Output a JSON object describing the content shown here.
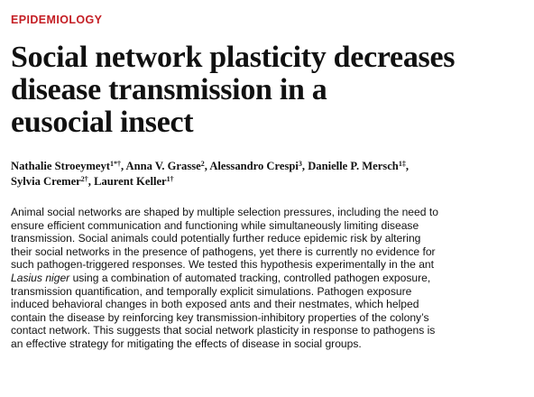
{
  "section_label": "EPIDEMIOLOGY",
  "title_lines": [
    "Social network plasticity decreases",
    "disease transmission in a",
    "eusocial insect"
  ],
  "authors": [
    {
      "name": "Nathalie Stroeymeyt",
      "marks": "1*†",
      "sep": ", "
    },
    {
      "name": "Anna V. Grasse",
      "marks": "2",
      "sep": ", "
    },
    {
      "name": "Alessandro Crespi",
      "marks": "3",
      "sep": ", "
    },
    {
      "name": "Danielle P. Mersch",
      "marks": "1‡",
      "sep": ","
    },
    {
      "name": "Sylvia Cremer",
      "marks": "2†",
      "sep": ", "
    },
    {
      "name": "Laurent Keller",
      "marks": "1†",
      "sep": ""
    }
  ],
  "abstract_lines": [
    {
      "pre": "Animal social networks are shaped by multiple selection pressures, including the need to",
      "italic": "",
      "post": ""
    },
    {
      "pre": "ensure efficient communication and functioning while simultaneously limiting disease",
      "italic": "",
      "post": ""
    },
    {
      "pre": "transmission. Social animals could potentially further reduce epidemic risk by altering",
      "italic": "",
      "post": ""
    },
    {
      "pre": "their social networks in the presence of pathogens, yet there is currently no evidence for",
      "italic": "",
      "post": ""
    },
    {
      "pre": "such pathogen-triggered responses. We tested this hypothesis experimentally in the ant",
      "italic": "",
      "post": ""
    },
    {
      "pre": "",
      "italic": "Lasius niger",
      "post": " using a combination of automated tracking, controlled pathogen exposure,"
    },
    {
      "pre": "transmission quantification, and temporally explicit simulations. Pathogen exposure",
      "italic": "",
      "post": ""
    },
    {
      "pre": "induced behavioral changes in both exposed ants and their nestmates, which helped",
      "italic": "",
      "post": ""
    },
    {
      "pre": "contain the disease by reinforcing key transmission-inhibitory properties of the colony’s",
      "italic": "",
      "post": ""
    },
    {
      "pre": "contact network. This suggests that social network plasticity in response to pathogens is",
      "italic": "",
      "post": ""
    },
    {
      "pre": "an effective strategy for mitigating the effects of disease in social groups.",
      "italic": "",
      "post": ""
    }
  ],
  "colors": {
    "section_label": "#c41e24",
    "text": "#111111",
    "background": "#ffffff"
  }
}
